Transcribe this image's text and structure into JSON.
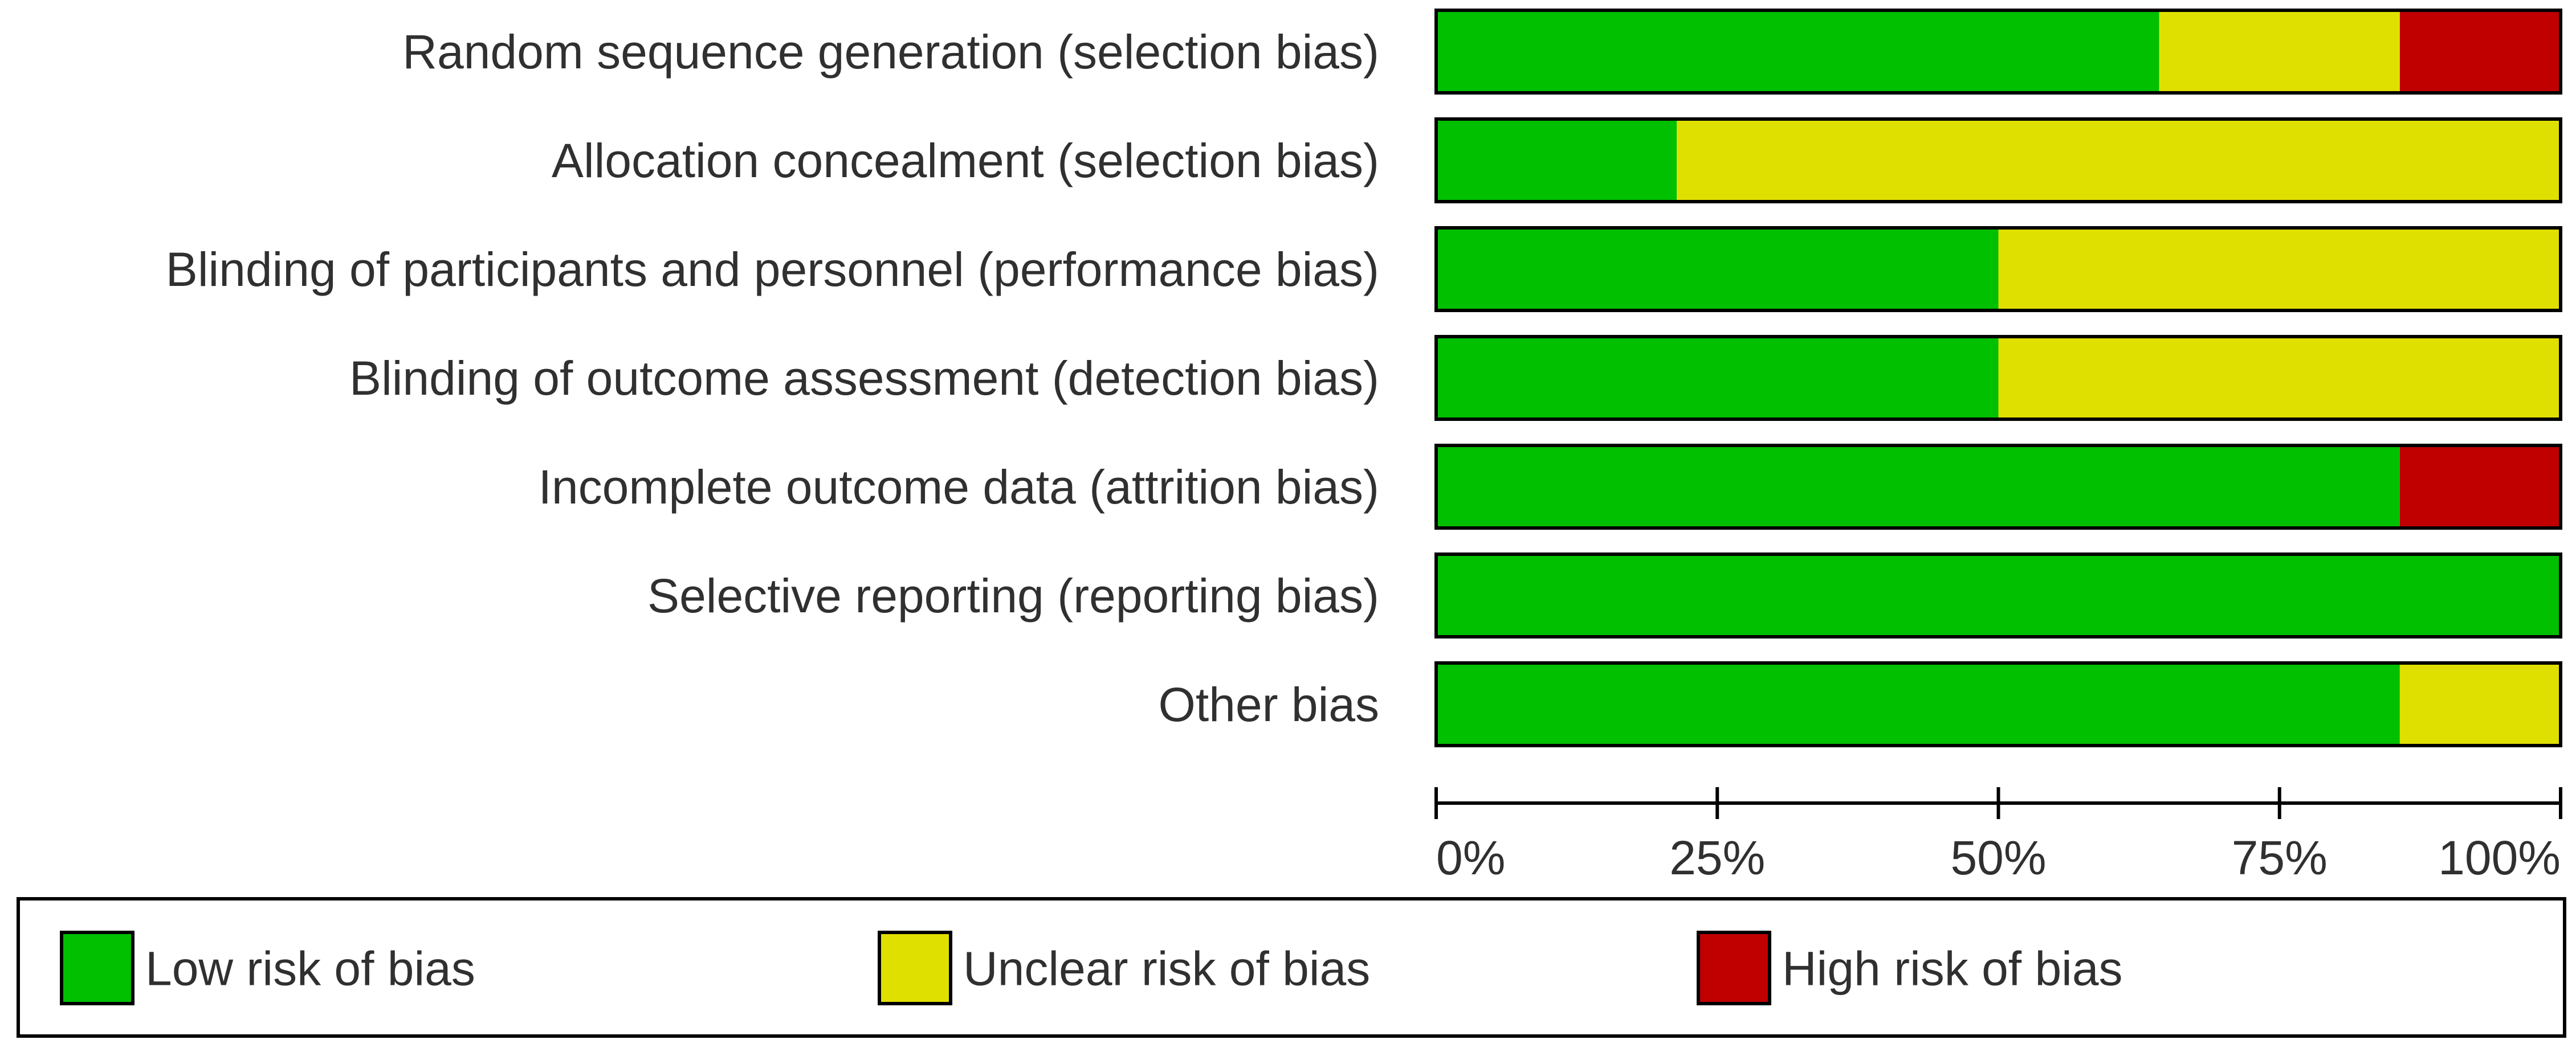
{
  "chart_data": {
    "type": "bar",
    "stacked": true,
    "orientation": "horizontal",
    "categories": [
      "Random sequence generation (selection bias)",
      "Allocation concealment (selection bias)",
      "Blinding of participants and personnel (performance bias)",
      "Blinding of outcome assessment (detection bias)",
      "Incomplete outcome data (attrition bias)",
      "Selective reporting (reporting bias)",
      "Other bias"
    ],
    "series": [
      {
        "name": "Low risk of bias",
        "color": "#00C000",
        "values": [
          64.3,
          21.4,
          50.0,
          50.0,
          85.7,
          100.0,
          85.7
        ]
      },
      {
        "name": "Unclear risk of bias",
        "color": "#E0E000",
        "values": [
          21.4,
          78.6,
          50.0,
          50.0,
          0.0,
          0.0,
          14.3
        ]
      },
      {
        "name": "High risk of bias",
        "color": "#C00000",
        "values": [
          14.3,
          0.0,
          0.0,
          0.0,
          14.3,
          0.0,
          0.0
        ]
      }
    ],
    "xlim": [
      0,
      100
    ],
    "ticks": [
      0,
      25,
      50,
      75,
      100
    ],
    "tick_labels": [
      "0%",
      "25%",
      "50%",
      "75%",
      "100%"
    ],
    "legend_position": "bottom",
    "grid": false
  }
}
